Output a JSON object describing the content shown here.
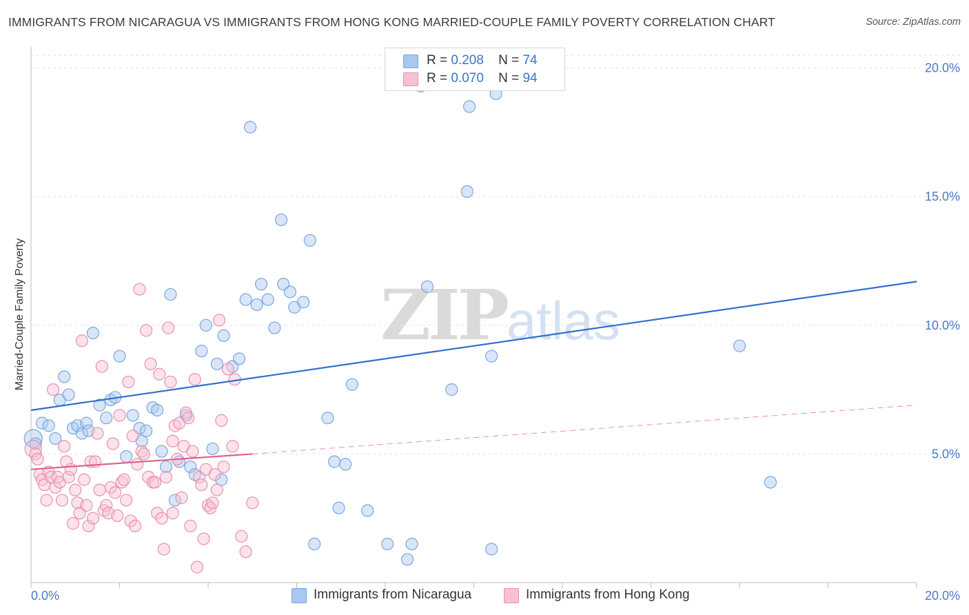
{
  "title": "IMMIGRANTS FROM NICARAGUA VS IMMIGRANTS FROM HONG KONG MARRIED-COUPLE FAMILY POVERTY CORRELATION CHART",
  "source": "Source: ZipAtlas.com",
  "watermark": {
    "zip": "ZIP",
    "atlas": "atlas"
  },
  "legend": {
    "items": [
      {
        "r_label": "R =",
        "r_value": "0.208",
        "n_label": "N =",
        "n_value": "74",
        "color": "#a8c8f0",
        "border": "#7aa6dd"
      },
      {
        "r_label": "R =",
        "r_value": "0.070",
        "n_label": "N =",
        "n_value": "94",
        "color": "#f8c0d2",
        "border": "#e890ae"
      }
    ]
  },
  "bottom_legend": [
    {
      "label": "Immigrants from Nicaragua",
      "color": "#a8c8f0",
      "border": "#7aa6dd"
    },
    {
      "label": "Immigrants from Hong Kong",
      "color": "#f8c0d2",
      "border": "#e890ae"
    }
  ],
  "chart_data": {
    "type": "scatter",
    "title": "IMMIGRANTS FROM NICARAGUA VS IMMIGRANTS FROM HONG KONG MARRIED-COUPLE FAMILY POVERTY CORRELATION CHART",
    "xlabel": "",
    "ylabel": "Married-Couple Family Poverty",
    "xlim": [
      0,
      20
    ],
    "ylim": [
      0,
      20.5
    ],
    "x_tick_labels": [
      "0.0%",
      "20.0%"
    ],
    "y_ticks": [
      5,
      10,
      15,
      20
    ],
    "y_tick_labels": [
      "5.0%",
      "10.0%",
      "15.0%",
      "20.0%"
    ],
    "grid": "horizontal dashed",
    "legend_position": "top-center",
    "series": [
      {
        "name": "Immigrants from Nicaragua",
        "color": "#7aa6dd",
        "fill": "#a8c8f0",
        "trend": {
          "x0": 0,
          "y0": 6.7,
          "x1": 20,
          "y1": 11.7,
          "style": "solid",
          "color": "#2f6fcf"
        },
        "points": [
          [
            0.05,
            5.6
          ],
          [
            0.1,
            5.4
          ],
          [
            0.25,
            6.2
          ],
          [
            0.4,
            6.1
          ],
          [
            0.55,
            5.6
          ],
          [
            0.65,
            7.1
          ],
          [
            0.75,
            8.0
          ],
          [
            0.85,
            7.3
          ],
          [
            0.95,
            6.0
          ],
          [
            1.05,
            6.1
          ],
          [
            1.15,
            5.8
          ],
          [
            1.25,
            6.2
          ],
          [
            1.3,
            5.9
          ],
          [
            1.4,
            9.7
          ],
          [
            1.55,
            6.9
          ],
          [
            1.7,
            6.4
          ],
          [
            1.8,
            7.1
          ],
          [
            1.9,
            7.2
          ],
          [
            2.0,
            8.8
          ],
          [
            2.15,
            4.9
          ],
          [
            2.3,
            6.5
          ],
          [
            2.45,
            6.0
          ],
          [
            2.5,
            5.5
          ],
          [
            2.6,
            5.9
          ],
          [
            2.75,
            6.8
          ],
          [
            2.85,
            6.7
          ],
          [
            2.95,
            5.1
          ],
          [
            3.05,
            4.5
          ],
          [
            3.15,
            11.2
          ],
          [
            3.25,
            3.2
          ],
          [
            3.35,
            4.7
          ],
          [
            3.5,
            6.5
          ],
          [
            3.6,
            4.5
          ],
          [
            3.7,
            4.2
          ],
          [
            3.85,
            9.0
          ],
          [
            3.95,
            10.0
          ],
          [
            4.1,
            5.2
          ],
          [
            4.2,
            8.5
          ],
          [
            4.3,
            4.0
          ],
          [
            4.35,
            9.6
          ],
          [
            4.55,
            8.4
          ],
          [
            4.7,
            8.7
          ],
          [
            4.85,
            11.0
          ],
          [
            4.95,
            17.7
          ],
          [
            5.1,
            10.8
          ],
          [
            5.2,
            11.6
          ],
          [
            5.35,
            11.0
          ],
          [
            5.5,
            9.9
          ],
          [
            5.65,
            14.1
          ],
          [
            5.7,
            11.6
          ],
          [
            5.85,
            11.3
          ],
          [
            5.95,
            10.7
          ],
          [
            6.15,
            10.9
          ],
          [
            6.3,
            13.3
          ],
          [
            6.7,
            6.4
          ],
          [
            6.85,
            4.7
          ],
          [
            6.95,
            2.9
          ],
          [
            7.1,
            4.6
          ],
          [
            7.25,
            7.7
          ],
          [
            7.6,
            2.8
          ],
          [
            8.05,
            1.5
          ],
          [
            8.5,
            0.9
          ],
          [
            8.6,
            1.5
          ],
          [
            8.95,
            11.5
          ],
          [
            8.8,
            19.3
          ],
          [
            9.5,
            7.5
          ],
          [
            9.85,
            15.2
          ],
          [
            9.9,
            18.5
          ],
          [
            10.4,
            8.8
          ],
          [
            10.5,
            19.0
          ],
          [
            10.4,
            1.3
          ],
          [
            16.0,
            9.2
          ],
          [
            16.7,
            3.9
          ],
          [
            6.4,
            1.5
          ]
        ]
      },
      {
        "name": "Immigrants from Hong Kong",
        "color": "#e890ae",
        "fill": "#f8c0d2",
        "trend": {
          "x0": 0,
          "y0": 4.4,
          "x1": 5.0,
          "y1": 5.0,
          "style": "solid",
          "color": "#e0608e",
          "extension": {
            "x0": 5.0,
            "y0": 5.0,
            "x1": 20,
            "y1": 6.9,
            "style": "dashed"
          }
        },
        "points": [
          [
            0.05,
            5.2
          ],
          [
            0.1,
            5.0
          ],
          [
            0.15,
            4.8
          ],
          [
            0.2,
            4.2
          ],
          [
            0.25,
            4.0
          ],
          [
            0.3,
            3.8
          ],
          [
            0.35,
            3.2
          ],
          [
            0.4,
            4.3
          ],
          [
            0.45,
            4.1
          ],
          [
            0.5,
            7.5
          ],
          [
            0.55,
            3.7
          ],
          [
            0.6,
            4.1
          ],
          [
            0.65,
            3.9
          ],
          [
            0.7,
            3.2
          ],
          [
            0.75,
            5.3
          ],
          [
            0.8,
            4.7
          ],
          [
            0.85,
            4.1
          ],
          [
            0.9,
            4.4
          ],
          [
            0.95,
            2.3
          ],
          [
            1.0,
            3.6
          ],
          [
            1.05,
            3.1
          ],
          [
            1.1,
            2.7
          ],
          [
            1.15,
            9.4
          ],
          [
            1.2,
            4.0
          ],
          [
            1.25,
            3.0
          ],
          [
            1.3,
            2.2
          ],
          [
            1.35,
            4.7
          ],
          [
            1.4,
            2.5
          ],
          [
            1.45,
            4.7
          ],
          [
            1.5,
            5.8
          ],
          [
            1.55,
            3.6
          ],
          [
            1.6,
            8.4
          ],
          [
            1.65,
            2.8
          ],
          [
            1.7,
            3.0
          ],
          [
            1.75,
            2.7
          ],
          [
            1.8,
            3.7
          ],
          [
            1.85,
            5.4
          ],
          [
            1.9,
            3.5
          ],
          [
            1.95,
            2.6
          ],
          [
            2.0,
            6.5
          ],
          [
            2.05,
            3.9
          ],
          [
            2.1,
            4.0
          ],
          [
            2.15,
            3.2
          ],
          [
            2.2,
            7.8
          ],
          [
            2.25,
            2.4
          ],
          [
            2.3,
            5.7
          ],
          [
            2.35,
            2.2
          ],
          [
            2.4,
            4.6
          ],
          [
            2.45,
            11.4
          ],
          [
            2.5,
            5.1
          ],
          [
            2.55,
            5.0
          ],
          [
            2.6,
            9.8
          ],
          [
            2.65,
            4.1
          ],
          [
            2.7,
            8.5
          ],
          [
            2.75,
            3.9
          ],
          [
            2.8,
            3.9
          ],
          [
            2.85,
            2.7
          ],
          [
            2.9,
            8.1
          ],
          [
            2.95,
            2.5
          ],
          [
            3.0,
            1.3
          ],
          [
            3.05,
            4.1
          ],
          [
            3.1,
            9.9
          ],
          [
            3.15,
            7.8
          ],
          [
            3.2,
            2.7
          ],
          [
            3.25,
            6.1
          ],
          [
            3.3,
            4.8
          ],
          [
            3.35,
            6.2
          ],
          [
            3.4,
            3.3
          ],
          [
            3.45,
            5.3
          ],
          [
            3.5,
            6.6
          ],
          [
            3.55,
            6.4
          ],
          [
            3.6,
            2.2
          ],
          [
            3.65,
            5.1
          ],
          [
            3.7,
            7.9
          ],
          [
            3.75,
            0.6
          ],
          [
            3.8,
            4.1
          ],
          [
            3.85,
            3.8
          ],
          [
            3.9,
            1.7
          ],
          [
            3.95,
            4.4
          ],
          [
            4.0,
            3.0
          ],
          [
            4.05,
            2.9
          ],
          [
            4.1,
            3.1
          ],
          [
            4.15,
            4.2
          ],
          [
            4.2,
            3.6
          ],
          [
            4.25,
            10.2
          ],
          [
            4.3,
            6.3
          ],
          [
            4.35,
            4.5
          ],
          [
            4.45,
            8.3
          ],
          [
            4.55,
            5.3
          ],
          [
            4.6,
            7.9
          ],
          [
            4.75,
            1.8
          ],
          [
            4.85,
            1.2
          ],
          [
            5.0,
            3.1
          ],
          [
            3.2,
            5.5
          ]
        ]
      }
    ]
  }
}
